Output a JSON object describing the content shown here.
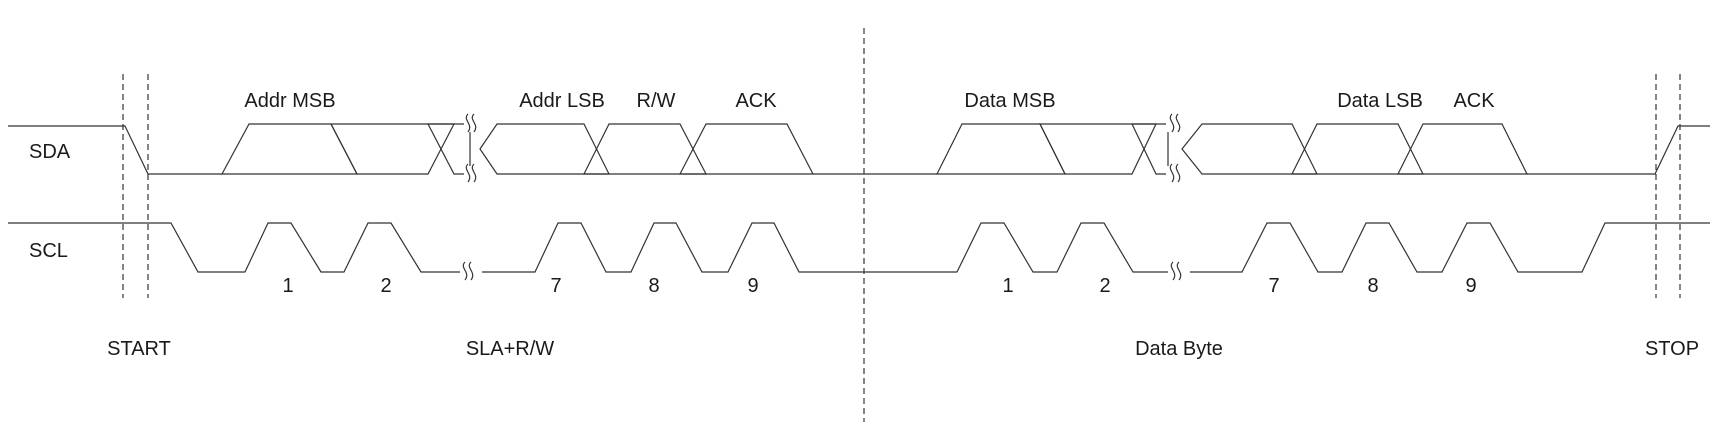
{
  "signals": {
    "sda": "SDA",
    "scl": "SCL"
  },
  "address_phase": {
    "addr_msb": "Addr MSB",
    "addr_lsb": "Addr LSB",
    "rw": "R/W",
    "ack": "ACK",
    "bits": [
      "1",
      "2",
      "7",
      "8",
      "9"
    ],
    "name": "SLA+R/W"
  },
  "data_phase": {
    "data_msb": "Data MSB",
    "data_lsb": "Data LSB",
    "ack": "ACK",
    "bits": [
      "1",
      "2",
      "7",
      "8",
      "9"
    ],
    "name": "Data Byte"
  },
  "conditions": {
    "start": "START",
    "stop": "STOP"
  }
}
